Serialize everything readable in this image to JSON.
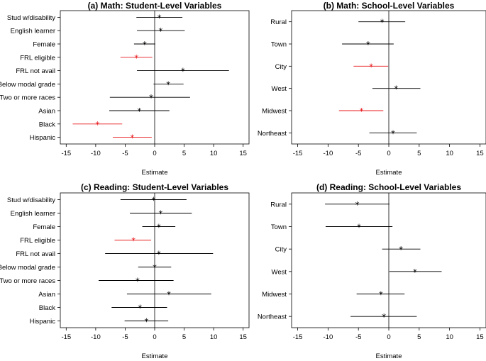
{
  "chart_data": [
    {
      "type": "scatter",
      "title": "(a) Math: Student-Level Variables",
      "xlabel": "Estimate",
      "xlim": [
        -16,
        16
      ],
      "xticks": [
        -15,
        -10,
        -5,
        0,
        5,
        10,
        15
      ],
      "categories": [
        "Stud w/disability",
        "English learner",
        "Female",
        "FRL eligible",
        "FRL not avail",
        "Below modal grade",
        "Two or more races",
        "Asian",
        "Black",
        "Hispanic"
      ],
      "estimate": [
        0.8,
        1.0,
        -1.7,
        -3.1,
        4.8,
        2.3,
        -0.6,
        -2.6,
        -9.7,
        -3.8
      ],
      "lower": [
        -3.1,
        -3.0,
        -3.5,
        -5.8,
        -3.0,
        -0.2,
        -7.6,
        -7.7,
        -13.9,
        -7.1
      ],
      "upper": [
        4.7,
        5.1,
        0.1,
        -0.4,
        12.6,
        4.9,
        6.0,
        2.5,
        -5.5,
        -0.5
      ],
      "significant": [
        false,
        false,
        false,
        true,
        false,
        false,
        false,
        false,
        true,
        true
      ]
    },
    {
      "type": "scatter",
      "title": "(b) Math: School-Level Variables",
      "xlabel": "Estimate",
      "xlim": [
        -16,
        16
      ],
      "xticks": [
        -15,
        -10,
        -5,
        0,
        5,
        10,
        15
      ],
      "categories": [
        "Rural",
        "Town",
        "City",
        "West",
        "Midwest",
        "Northeast"
      ],
      "estimate": [
        -1.1,
        -3.4,
        -2.9,
        1.2,
        -4.5,
        0.7
      ],
      "lower": [
        -5.0,
        -7.7,
        -5.8,
        -2.7,
        -8.2,
        -3.2
      ],
      "upper": [
        2.7,
        0.8,
        -0.1,
        5.2,
        -0.9,
        4.6
      ],
      "significant": [
        false,
        false,
        true,
        false,
        true,
        false
      ]
    },
    {
      "type": "scatter",
      "title": "(c) Reading: Student-Level Variables",
      "xlabel": "Estimate",
      "xlim": [
        -16,
        16
      ],
      "xticks": [
        -15,
        -10,
        -5,
        0,
        5,
        10,
        15
      ],
      "categories": [
        "Stud w/disability",
        "English learner",
        "Female",
        "FRL eligible",
        "FRL not avail",
        "Below modal grade",
        "Two or more races",
        "Asian",
        "Black",
        "Hispanic"
      ],
      "estimate": [
        -0.2,
        1.0,
        0.7,
        -3.6,
        0.7,
        0.0,
        -2.9,
        2.4,
        -2.5,
        -1.4
      ],
      "lower": [
        -5.8,
        -4.2,
        -2.1,
        -6.8,
        -8.4,
        -2.8,
        -9.5,
        -4.7,
        -7.3,
        -5.1
      ],
      "upper": [
        5.4,
        6.3,
        3.5,
        -0.6,
        9.9,
        2.8,
        3.2,
        9.6,
        2.1,
        2.3
      ],
      "significant": [
        false,
        false,
        false,
        true,
        false,
        false,
        false,
        false,
        false,
        false
      ]
    },
    {
      "type": "scatter",
      "title": "(d) Reading: School-Level Variables",
      "xlabel": "Estimate",
      "xlim": [
        -16,
        16
      ],
      "xticks": [
        -15,
        -10,
        -5,
        0,
        5,
        10,
        15
      ],
      "categories": [
        "Rural",
        "Town",
        "City",
        "West",
        "Midwest",
        "Northeast"
      ],
      "estimate": [
        -5.2,
        -4.9,
        2.0,
        4.3,
        -1.3,
        -0.8
      ],
      "lower": [
        -10.5,
        -10.4,
        -1.1,
        0.1,
        -5.3,
        -6.3
      ],
      "upper": [
        0.1,
        0.6,
        5.2,
        8.7,
        2.6,
        4.6
      ],
      "significant": [
        false,
        false,
        false,
        false,
        false,
        false
      ]
    }
  ],
  "colors": {
    "significant": "#e8191d",
    "normal": "#000000"
  }
}
